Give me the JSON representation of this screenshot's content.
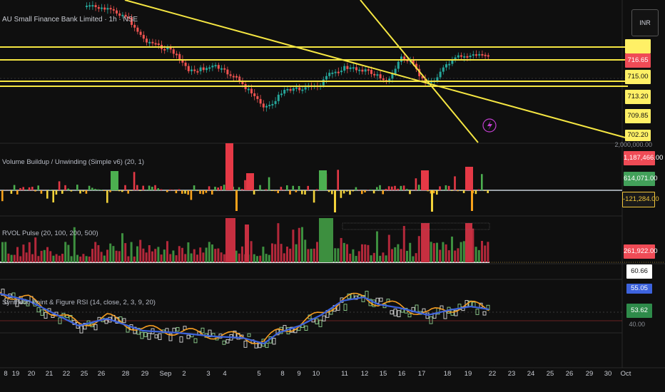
{
  "title": "AU Small Finance Bank Limited · 1h · NSE",
  "currency": "INR",
  "indicators": {
    "volume": "Volume Buildup / Unwinding (Simple v6) (20, 1)",
    "rvol": "RVOL Pulse (20, 100, 200, 500)",
    "synth": "Synthetic Point & Figure RSI (14, close, 2, 3, 9, 20)"
  },
  "price_axis": [
    "715.00",
    "713.20",
    "709.85",
    "702.20"
  ],
  "price_badge": "716.65",
  "volume_axis_top": "2,000,000.00",
  "volume_badges": [
    "1,187,466.00",
    "614,071.00",
    "-121,284.00"
  ],
  "rvol_badge": "261,922.00",
  "rsi_badges": [
    "60.66",
    "55.05",
    "53.62"
  ],
  "rsi_axis_bottom": "40.00",
  "x_labels": [
    "8",
    "19",
    "20",
    "21",
    "22",
    "25",
    "26",
    "28",
    "29",
    "Sep",
    "2",
    "3",
    "4",
    "5",
    "8",
    "9",
    "10",
    "11",
    "12",
    "15",
    "16",
    "17",
    "18",
    "19",
    "22",
    "23",
    "24",
    "25",
    "26",
    "29",
    "30",
    "Oct"
  ],
  "colors": {
    "up": "#26a69a",
    "down": "#ef5350",
    "trendline": "#f5e642",
    "vol_up": "#4caf50",
    "vol_down": "#e53946",
    "vol_neg": "#f7a21b",
    "rsi_blue": "#3d63dd",
    "rsi_orange": "#f59d22"
  },
  "icons": [
    "lightning-icon"
  ]
}
